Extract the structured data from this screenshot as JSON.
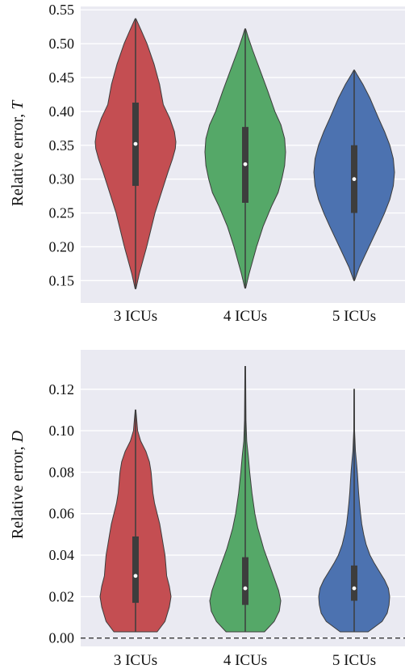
{
  "chart_data": [
    {
      "type": "violin",
      "ylabel_prefix": "Relative error, ",
      "ylabel_var": "T",
      "categories": [
        "3 ICUs",
        "4 ICUs",
        "5 ICUs"
      ],
      "colors": [
        "#c44e52",
        "#55a868",
        "#4c72b0"
      ],
      "background": "#eaeaf2",
      "grid": true,
      "ylim": [
        0.117,
        0.555
      ],
      "yticks": [
        "0.15",
        "0.20",
        "0.25",
        "0.30",
        "0.35",
        "0.40",
        "0.45",
        "0.50",
        "0.55"
      ],
      "series": [
        {
          "min": 0.138,
          "max": 0.537,
          "q1": 0.29,
          "median": 0.352,
          "q3": 0.413,
          "profile": [
            [
              0.138,
              0.002
            ],
            [
              0.16,
              0.02
            ],
            [
              0.2,
              0.06
            ],
            [
              0.25,
              0.105
            ],
            [
              0.28,
              0.14
            ],
            [
              0.31,
              0.175
            ],
            [
              0.33,
              0.2
            ],
            [
              0.345,
              0.215
            ],
            [
              0.355,
              0.218
            ],
            [
              0.37,
              0.21
            ],
            [
              0.39,
              0.185
            ],
            [
              0.41,
              0.15
            ],
            [
              0.44,
              0.13
            ],
            [
              0.47,
              0.1
            ],
            [
              0.5,
              0.062
            ],
            [
              0.52,
              0.03
            ],
            [
              0.537,
              0.002
            ]
          ]
        },
        {
          "min": 0.139,
          "max": 0.522,
          "q1": 0.265,
          "median": 0.322,
          "q3": 0.377,
          "profile": [
            [
              0.139,
              0.002
            ],
            [
              0.16,
              0.02
            ],
            [
              0.2,
              0.06
            ],
            [
              0.23,
              0.095
            ],
            [
              0.26,
              0.14
            ],
            [
              0.28,
              0.175
            ],
            [
              0.3,
              0.195
            ],
            [
              0.32,
              0.21
            ],
            [
              0.34,
              0.215
            ],
            [
              0.36,
              0.21
            ],
            [
              0.38,
              0.19
            ],
            [
              0.4,
              0.158
            ],
            [
              0.43,
              0.12
            ],
            [
              0.46,
              0.08
            ],
            [
              0.49,
              0.04
            ],
            [
              0.51,
              0.015
            ],
            [
              0.522,
              0.002
            ]
          ]
        },
        {
          "min": 0.15,
          "max": 0.461,
          "q1": 0.25,
          "median": 0.3,
          "q3": 0.35,
          "profile": [
            [
              0.15,
              0.002
            ],
            [
              0.17,
              0.03
            ],
            [
              0.2,
              0.085
            ],
            [
              0.23,
              0.14
            ],
            [
              0.25,
              0.175
            ],
            [
              0.27,
              0.205
            ],
            [
              0.29,
              0.225
            ],
            [
              0.31,
              0.232
            ],
            [
              0.33,
              0.225
            ],
            [
              0.35,
              0.205
            ],
            [
              0.37,
              0.175
            ],
            [
              0.39,
              0.14
            ],
            [
              0.42,
              0.09
            ],
            [
              0.44,
              0.05
            ],
            [
              0.455,
              0.015
            ],
            [
              0.461,
              0.002
            ]
          ]
        }
      ]
    },
    {
      "type": "violin",
      "ylabel_prefix": "Relative error, ",
      "ylabel_var": "D",
      "categories": [
        "3 ICUs",
        "4 ICUs",
        "5 ICUs"
      ],
      "colors": [
        "#c44e52",
        "#55a868",
        "#4c72b0"
      ],
      "background": "#eaeaf2",
      "grid": true,
      "ylim": [
        -0.004,
        0.139
      ],
      "yticks": [
        "0.00",
        "0.02",
        "0.04",
        "0.06",
        "0.08",
        "0.10",
        "0.12"
      ],
      "reference_line": 0.0,
      "series": [
        {
          "min": 0.003,
          "max": 0.11,
          "q1": 0.017,
          "median": 0.03,
          "q3": 0.049,
          "profile": [
            [
              0.003,
              0.125
            ],
            [
              0.008,
              0.17
            ],
            [
              0.015,
              0.195
            ],
            [
              0.02,
              0.205
            ],
            [
              0.025,
              0.195
            ],
            [
              0.03,
              0.18
            ],
            [
              0.035,
              0.175
            ],
            [
              0.04,
              0.17
            ],
            [
              0.045,
              0.16
            ],
            [
              0.05,
              0.15
            ],
            [
              0.055,
              0.14
            ],
            [
              0.06,
              0.125
            ],
            [
              0.065,
              0.11
            ],
            [
              0.07,
              0.1
            ],
            [
              0.075,
              0.095
            ],
            [
              0.08,
              0.09
            ],
            [
              0.085,
              0.08
            ],
            [
              0.09,
              0.06
            ],
            [
              0.095,
              0.03
            ],
            [
              0.1,
              0.012
            ],
            [
              0.11,
              0.002
            ]
          ]
        },
        {
          "min": 0.003,
          "max": 0.131,
          "q1": 0.016,
          "median": 0.024,
          "q3": 0.039,
          "profile": [
            [
              0.003,
              0.13
            ],
            [
              0.008,
              0.195
            ],
            [
              0.013,
              0.23
            ],
            [
              0.018,
              0.24
            ],
            [
              0.023,
              0.225
            ],
            [
              0.028,
              0.2
            ],
            [
              0.033,
              0.175
            ],
            [
              0.038,
              0.15
            ],
            [
              0.043,
              0.125
            ],
            [
              0.048,
              0.105
            ],
            [
              0.053,
              0.085
            ],
            [
              0.06,
              0.065
            ],
            [
              0.07,
              0.045
            ],
            [
              0.08,
              0.03
            ],
            [
              0.088,
              0.02
            ],
            [
              0.095,
              0.01
            ],
            [
              0.105,
              0.005
            ],
            [
              0.131,
              0.002
            ]
          ]
        },
        {
          "min": 0.003,
          "max": 0.12,
          "q1": 0.018,
          "median": 0.024,
          "q3": 0.035,
          "profile": [
            [
              0.003,
              0.11
            ],
            [
              0.008,
              0.22
            ],
            [
              0.012,
              0.26
            ],
            [
              0.016,
              0.275
            ],
            [
              0.02,
              0.28
            ],
            [
              0.024,
              0.27
            ],
            [
              0.028,
              0.24
            ],
            [
              0.032,
              0.2
            ],
            [
              0.036,
              0.16
            ],
            [
              0.04,
              0.125
            ],
            [
              0.045,
              0.095
            ],
            [
              0.05,
              0.075
            ],
            [
              0.055,
              0.06
            ],
            [
              0.06,
              0.05
            ],
            [
              0.065,
              0.042
            ],
            [
              0.07,
              0.035
            ],
            [
              0.075,
              0.03
            ],
            [
              0.08,
              0.025
            ],
            [
              0.085,
              0.018
            ],
            [
              0.09,
              0.01
            ],
            [
              0.1,
              0.003
            ],
            [
              0.12,
              0.002
            ]
          ]
        }
      ]
    }
  ]
}
